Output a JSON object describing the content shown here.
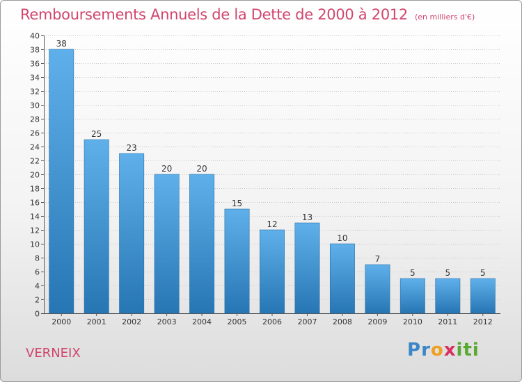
{
  "title": "Remboursements Annuels de la Dette de 2000 à 2012",
  "subtitle": "(en milliers d'€)",
  "commune": "VERNEIX",
  "logo": {
    "letters": [
      "P",
      "r",
      "o",
      "x",
      "i",
      "t",
      "i"
    ],
    "colors": [
      "#3a86c8",
      "#3a86c8",
      "#f0a020",
      "#d83060",
      "#58a832",
      "#58a832",
      "#58a832"
    ]
  },
  "colors": {
    "bar_light": "#5fb0ea",
    "bar_dark": "#2776b4",
    "title": "#d0456e",
    "grid": "#c8c8c8"
  },
  "chart_data": {
    "type": "bar",
    "title": "Remboursements Annuels de la Dette de 2000 à 2012",
    "subtitle": "(en milliers d'€)",
    "categories": [
      "2000",
      "2001",
      "2002",
      "2003",
      "2004",
      "2005",
      "2006",
      "2007",
      "2008",
      "2009",
      "2010",
      "2011",
      "2012"
    ],
    "values": [
      38,
      25,
      23,
      20,
      20,
      15,
      12,
      13,
      10,
      7,
      5,
      5,
      5
    ],
    "ylim": [
      0,
      40
    ],
    "ytick_step": 2,
    "grid": true,
    "data_labels": true
  }
}
